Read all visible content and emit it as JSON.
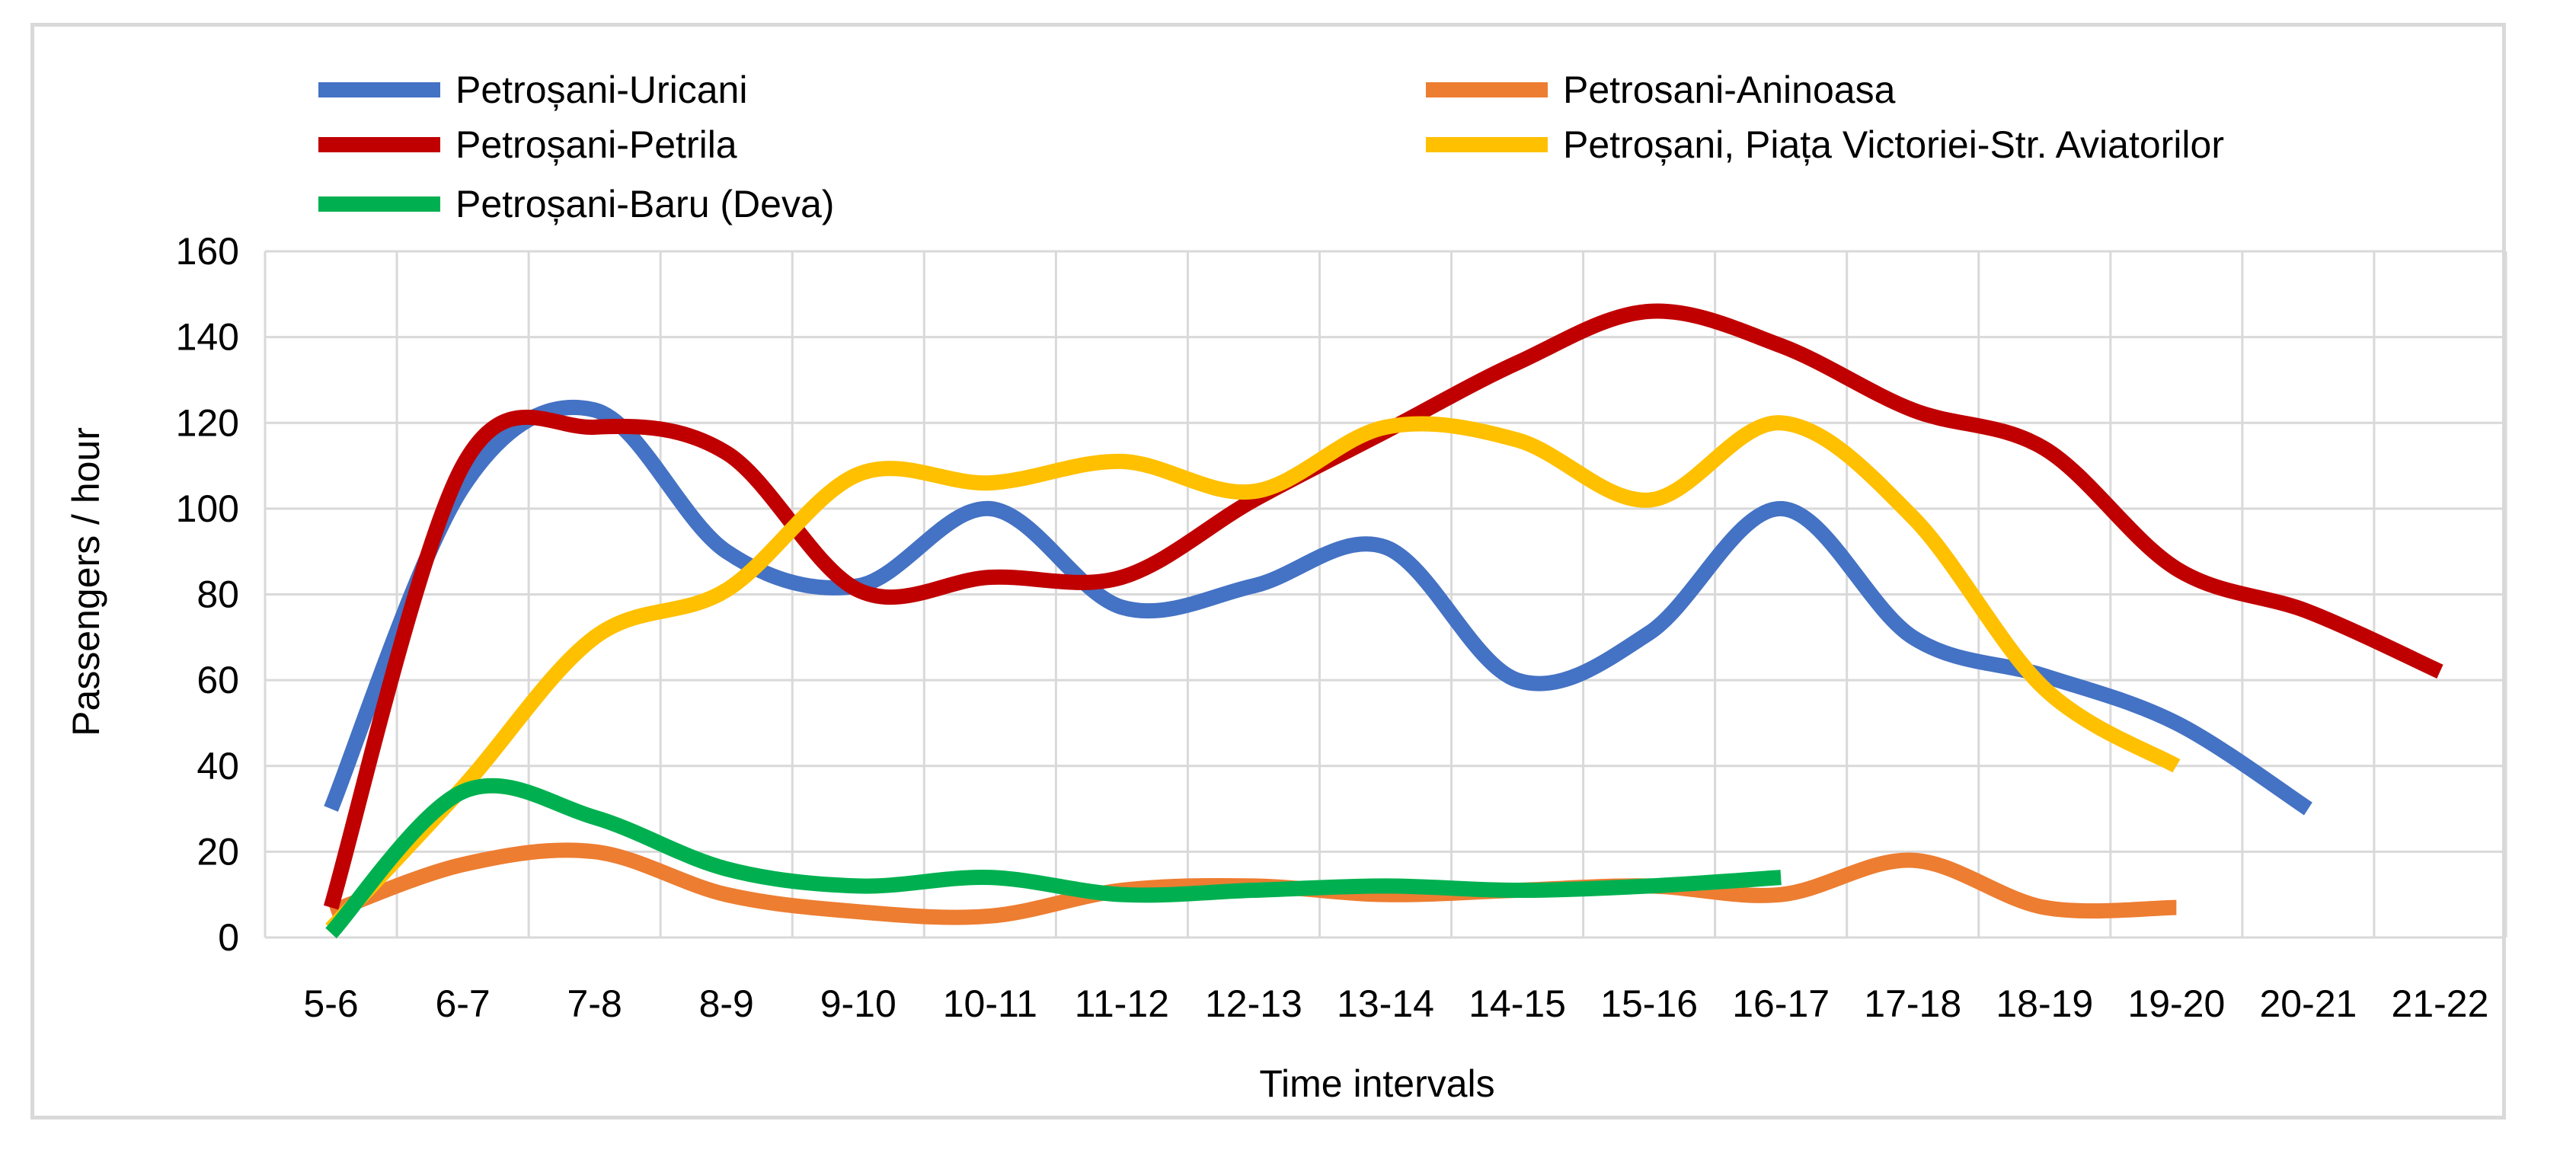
{
  "chart_data": {
    "type": "line",
    "title": "",
    "xlabel": "Time intervals",
    "ylabel": "Passengers / hour",
    "ylim": [
      0,
      160
    ],
    "yticks": [
      0,
      20,
      40,
      60,
      80,
      100,
      120,
      140,
      160
    ],
    "grid": true,
    "smooth": true,
    "legend_position": "top",
    "categories": [
      "5-6",
      "6-7",
      "7-8",
      "8-9",
      "9-10",
      "10-11",
      "11-12",
      "12-13",
      "13-14",
      "14-15",
      "15-16",
      "16-17",
      "17-18",
      "18-19",
      "19-20",
      "20-21",
      "21-22"
    ],
    "series": [
      {
        "name": "Petroșani-Uricani",
        "color": "#4472C4",
        "values": [
          30,
          105,
          123,
          90,
          82,
          100,
          77,
          82,
          91,
          60,
          71,
          100,
          70,
          61,
          50,
          30,
          null
        ]
      },
      {
        "name": "Petrosani-Aninoasa",
        "color": "#ED7D31",
        "values": [
          6,
          17,
          20,
          10,
          6,
          5,
          11,
          12,
          10,
          11,
          12,
          10,
          18,
          7,
          7,
          null,
          null
        ]
      },
      {
        "name": "Petroșani-Petrila",
        "color": "#C00000",
        "values": [
          7,
          110,
          119,
          113,
          81,
          84,
          84,
          102,
          118,
          134,
          146,
          138,
          123,
          114,
          86,
          76,
          62
        ]
      },
      {
        "name": "Petroșani, Piața Victoriei-Str. Aviatorilor",
        "color": "#FFC000",
        "values": [
          2,
          35,
          70,
          81,
          108,
          106,
          111,
          104,
          119,
          116,
          102,
          120,
          98,
          58,
          40,
          null,
          null
        ]
      },
      {
        "name": "Petroșani-Baru (Deva)",
        "color": "#00B050",
        "values": [
          1,
          34,
          28,
          16,
          12,
          14,
          10,
          11,
          12,
          11,
          12,
          14,
          null,
          null,
          null,
          null,
          null
        ]
      }
    ]
  }
}
